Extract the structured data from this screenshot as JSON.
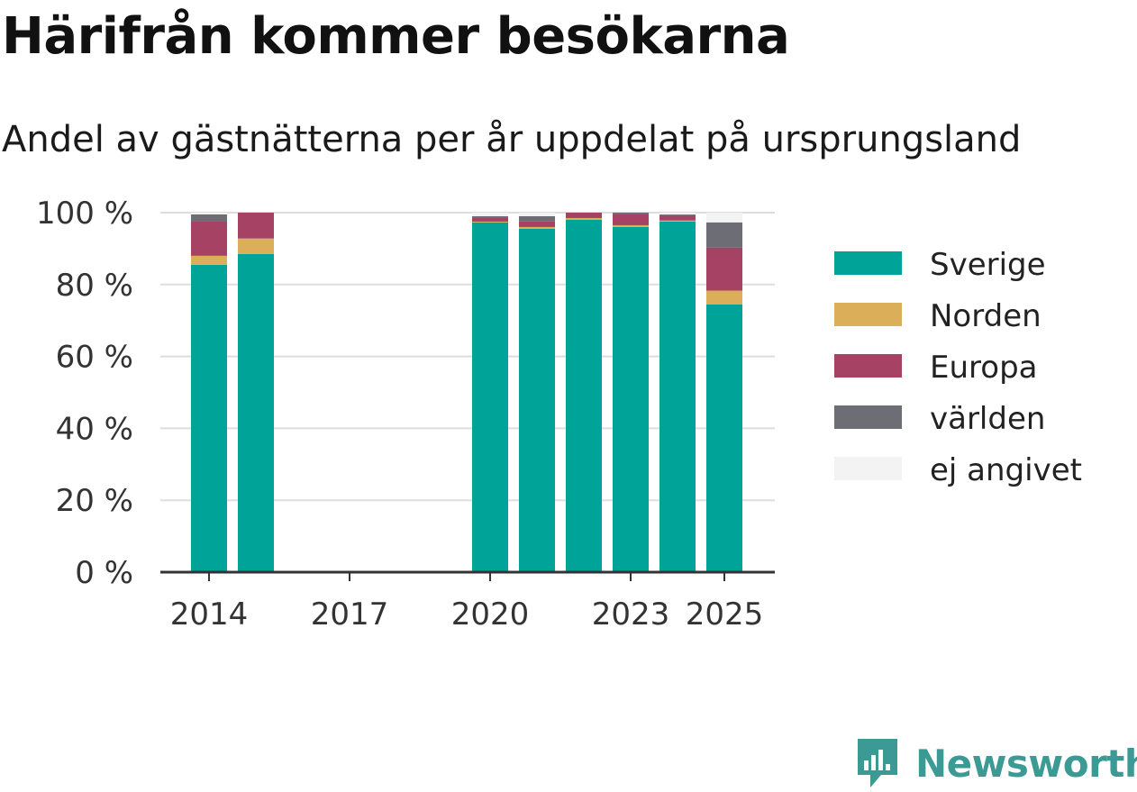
{
  "header": {
    "title": "Härifrån kommer besökarna",
    "subtitle": "Andel av gästnätterna per år uppdelat på ursprungsland"
  },
  "brand": {
    "name": "Newsworthy",
    "color": "#3b9a93"
  },
  "chart_data": {
    "type": "bar",
    "stacked": true,
    "title": "Härifrån kommer besökarna",
    "subtitle": "Andel av gästnätterna per år uppdelat på ursprungsland",
    "x": [
      2014,
      2015,
      2016,
      2017,
      2018,
      2019,
      2020,
      2021,
      2022,
      2023,
      2024,
      2025
    ],
    "x_tick_labels": [
      "2014",
      "2017",
      "2020",
      "2023",
      "2025"
    ],
    "y_ticks": [
      "0 %",
      "20 %",
      "40 %",
      "60 %",
      "80 %",
      "100 %"
    ],
    "ylim": [
      0,
      100
    ],
    "y_unit": "%",
    "grid": true,
    "legend_position": "right",
    "series": [
      {
        "name": "Sverige",
        "color": "#00a398",
        "values": [
          85.5,
          88.5,
          null,
          null,
          null,
          null,
          97.3,
          95.5,
          98.0,
          96.0,
          97.5,
          74.5
        ]
      },
      {
        "name": "Norden",
        "color": "#dbae5a",
        "values": [
          2.5,
          4.3,
          null,
          null,
          null,
          null,
          0.2,
          0.5,
          0.5,
          0.5,
          0.3,
          3.8
        ]
      },
      {
        "name": "Europa",
        "color": "#a64364",
        "values": [
          9.5,
          7.2,
          null,
          null,
          null,
          null,
          1.0,
          1.7,
          1.5,
          3.0,
          1.5,
          12.0
        ]
      },
      {
        "name": "världen",
        "color": "#6d6d75",
        "values": [
          2.0,
          0.0,
          null,
          null,
          null,
          null,
          0.5,
          1.3,
          0.0,
          0.5,
          0.2,
          7.0
        ]
      },
      {
        "name": "ej angivet",
        "color": "#f3f3f4",
        "values": [
          0.5,
          0.0,
          null,
          null,
          null,
          null,
          1.0,
          1.0,
          0.0,
          0.0,
          0.5,
          2.7
        ]
      }
    ]
  }
}
